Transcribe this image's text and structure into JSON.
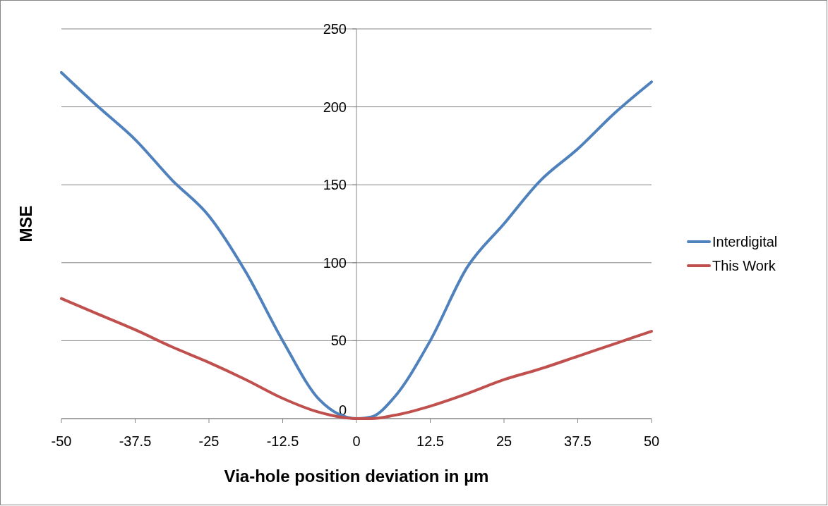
{
  "chart_data": {
    "type": "line",
    "xlabel": "Via-hole position deviation in µm",
    "ylabel": "MSE",
    "x": [
      -50,
      -43.75,
      -37.5,
      -31.25,
      -25,
      -18.75,
      -12.5,
      -6.25,
      0,
      2.5,
      6.25,
      12.5,
      18.75,
      25,
      31.25,
      37.5,
      43.75,
      50
    ],
    "series": [
      {
        "name": "Interdigital",
        "color": "#4f81bd",
        "values": [
          222,
          200,
          179,
          153,
          130,
          94,
          50,
          12,
          0,
          1,
          13,
          50,
          97,
          125,
          153,
          173,
          196,
          216
        ]
      },
      {
        "name": "This Work",
        "color": "#c0504d",
        "values": [
          77,
          67,
          57,
          46,
          36,
          25,
          13,
          4,
          0,
          0,
          2,
          8,
          16,
          25,
          32,
          40,
          48,
          56
        ]
      }
    ],
    "xlim": [
      -50,
      50
    ],
    "xticks": [
      -50,
      -37.5,
      -25,
      -12.5,
      0,
      12.5,
      25,
      37.5,
      50
    ],
    "ylim": [
      0,
      250
    ],
    "yticks": [
      0,
      50,
      100,
      150,
      200,
      250
    ],
    "grid": "y",
    "legend": "right",
    "marker": "none",
    "line_style": "solid"
  }
}
